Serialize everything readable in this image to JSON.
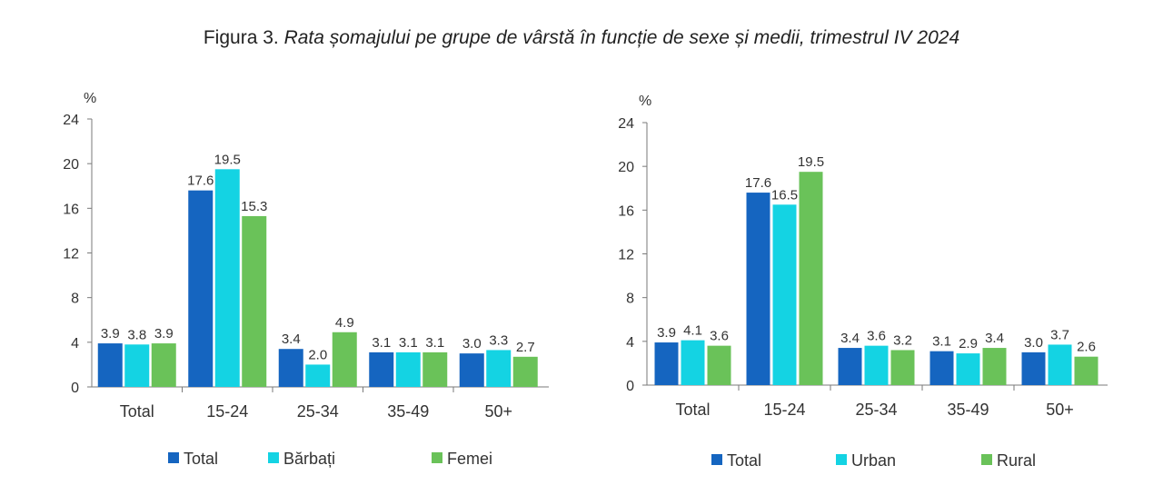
{
  "figure": {
    "prefix": "Figura 3. ",
    "caption": "Rata șomajului pe grupe de vârstă în funcție de sexe și medii, trimestrul IV 2024"
  },
  "chart_data": [
    {
      "type": "bar",
      "ylabel": "%",
      "ylim": [
        0,
        24
      ],
      "yticks": [
        0,
        4,
        8,
        12,
        16,
        20,
        24
      ],
      "categories": [
        "Total",
        "15-24",
        "25-34",
        "35-49",
        "50+"
      ],
      "series": [
        {
          "name": "Total",
          "color": "#1565c0",
          "values": [
            3.9,
            17.6,
            3.4,
            3.1,
            3.0
          ],
          "labels": [
            "3.9",
            "17.6",
            "3.4",
            "3.1",
            "3.0"
          ]
        },
        {
          "name": "Bărbați",
          "color": "#14d3e3",
          "values": [
            3.8,
            19.5,
            2.0,
            3.1,
            3.3
          ],
          "labels": [
            "3.8",
            "19.5",
            "2.0",
            "3.1",
            "3.3"
          ]
        },
        {
          "name": "Femei",
          "color": "#6ac259",
          "values": [
            3.9,
            15.3,
            4.9,
            3.1,
            2.7
          ],
          "labels": [
            "3.9",
            "15.3",
            "4.9",
            "3.1",
            "2.7"
          ]
        }
      ],
      "legend_position": "bottom",
      "grid": false
    },
    {
      "type": "bar",
      "ylabel": "%",
      "ylim": [
        0,
        24
      ],
      "yticks": [
        0,
        4,
        8,
        12,
        16,
        20,
        24
      ],
      "categories": [
        "Total",
        "15-24",
        "25-34",
        "35-49",
        "50+"
      ],
      "series": [
        {
          "name": "Total",
          "color": "#1565c0",
          "values": [
            3.9,
            17.6,
            3.4,
            3.1,
            3.0
          ],
          "labels": [
            "3.9",
            "17.6",
            "3.4",
            "3.1",
            "3.0"
          ]
        },
        {
          "name": "Urban",
          "color": "#14d3e3",
          "values": [
            4.1,
            16.5,
            3.6,
            2.9,
            3.7
          ],
          "labels": [
            "4.1",
            "16.5",
            "3.6",
            "2.9",
            "3.7"
          ]
        },
        {
          "name": "Rural",
          "color": "#6ac259",
          "values": [
            3.6,
            19.5,
            3.2,
            3.4,
            2.6
          ],
          "labels": [
            "3.6",
            "19.5",
            "3.2",
            "3.4",
            "2.6"
          ]
        }
      ],
      "legend_position": "bottom",
      "grid": false
    }
  ]
}
